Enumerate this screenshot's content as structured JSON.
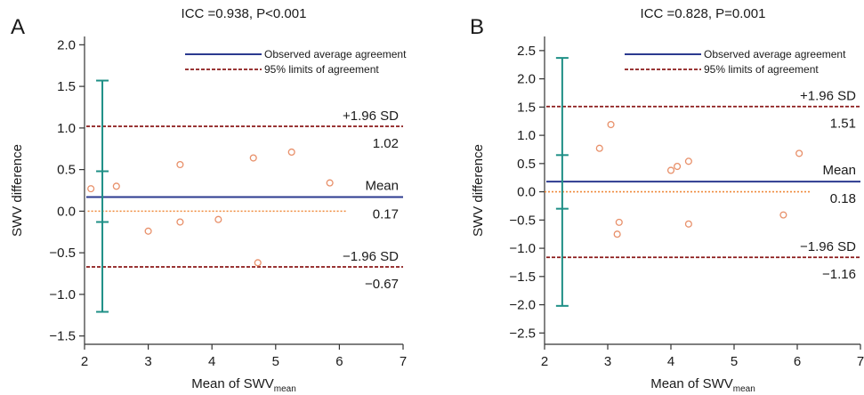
{
  "colors": {
    "mean_line": "#2b3a8f",
    "limit_line": "#8b1a1a",
    "zero_line": "#ef8a3c",
    "points": "#e8906a",
    "error_bar": "#1e8f86",
    "axis": "#333333"
  },
  "chart_data": [
    {
      "type": "scatter",
      "panel_label": "A",
      "title": "ICC =0.938, P<0.001",
      "xlabel_main": "Mean of SWV",
      "xlabel_sub": "mean",
      "ylabel": "SWV difference",
      "xlim": [
        2,
        7
      ],
      "ylim": [
        -1.6,
        2.1
      ],
      "xticks": [
        2,
        3,
        4,
        5,
        6,
        7
      ],
      "yticks": [
        -1.5,
        -1.0,
        -0.5,
        0.0,
        0.5,
        1.0,
        1.5,
        2.0
      ],
      "ytick_labels": [
        "−1.5",
        "−1.0",
        "−0.5",
        "0.0",
        "0.5",
        "1.0",
        "1.5",
        "2.0"
      ],
      "points": [
        {
          "x": 2.1,
          "y": 0.27
        },
        {
          "x": 2.5,
          "y": 0.3
        },
        {
          "x": 3.0,
          "y": -0.24
        },
        {
          "x": 3.5,
          "y": 0.56
        },
        {
          "x": 3.5,
          "y": -0.13
        },
        {
          "x": 4.1,
          "y": -0.1
        },
        {
          "x": 4.65,
          "y": 0.64
        },
        {
          "x": 4.72,
          "y": -0.62
        },
        {
          "x": 5.25,
          "y": 0.71
        },
        {
          "x": 5.85,
          "y": 0.34
        }
      ],
      "mean": 0.17,
      "upper_limit": 1.02,
      "lower_limit": -0.67,
      "zero_line_range": [
        2.05,
        6.1
      ],
      "error_bar": {
        "x": 2.28,
        "whiskers": [
          1.57,
          0.48,
          -0.13,
          -1.21
        ]
      },
      "labels": {
        "upper_sd": "+1.96 SD",
        "upper_value": "1.02",
        "mean": "Mean",
        "mean_value": "0.17",
        "lower_sd": "−1.96 SD",
        "lower_value": "−0.67"
      },
      "legend": [
        {
          "label": "Observed average agreement",
          "style": "solid"
        },
        {
          "label": "95% limits of agreement",
          "style": "dashed"
        }
      ]
    },
    {
      "type": "scatter",
      "panel_label": "B",
      "title": "ICC =0.828, P=0.001",
      "xlabel_main": "Mean of SWV",
      "xlabel_sub": "mean",
      "ylabel": "SWV difference",
      "xlim": [
        2,
        7
      ],
      "ylim": [
        -2.7,
        2.75
      ],
      "xticks": [
        2,
        3,
        4,
        5,
        6,
        7
      ],
      "yticks": [
        -2.5,
        -2.0,
        -1.5,
        -1.0,
        -0.5,
        0.0,
        0.5,
        1.0,
        1.5,
        2.0,
        2.5
      ],
      "ytick_labels": [
        "−2.5",
        "−2.0",
        "−1.5",
        "−1.0",
        "−0.5",
        "0.0",
        "0.5",
        "1.0",
        "1.5",
        "2.0",
        "2.5"
      ],
      "points": [
        {
          "x": 2.87,
          "y": 0.77
        },
        {
          "x": 3.05,
          "y": 1.19
        },
        {
          "x": 3.15,
          "y": -0.75
        },
        {
          "x": 3.18,
          "y": -0.54
        },
        {
          "x": 4.0,
          "y": 0.38
        },
        {
          "x": 4.1,
          "y": 0.45
        },
        {
          "x": 4.28,
          "y": 0.54
        },
        {
          "x": 4.28,
          "y": -0.57
        },
        {
          "x": 5.78,
          "y": -0.41
        },
        {
          "x": 6.03,
          "y": 0.68
        }
      ],
      "mean": 0.18,
      "upper_limit": 1.51,
      "lower_limit": -1.16,
      "zero_line_range": [
        2.0,
        6.2
      ],
      "error_bar": {
        "x": 2.28,
        "whiskers": [
          2.37,
          0.65,
          -0.3,
          -2.02
        ]
      },
      "labels": {
        "upper_sd": "+1.96 SD",
        "upper_value": "1.51",
        "mean": "Mean",
        "mean_value": "0.18",
        "lower_sd": "−1.96 SD",
        "lower_value": "−1.16"
      },
      "legend": [
        {
          "label": "Observed average agreement",
          "style": "solid"
        },
        {
          "label": "95% limits of agreement",
          "style": "dashed"
        }
      ]
    }
  ]
}
